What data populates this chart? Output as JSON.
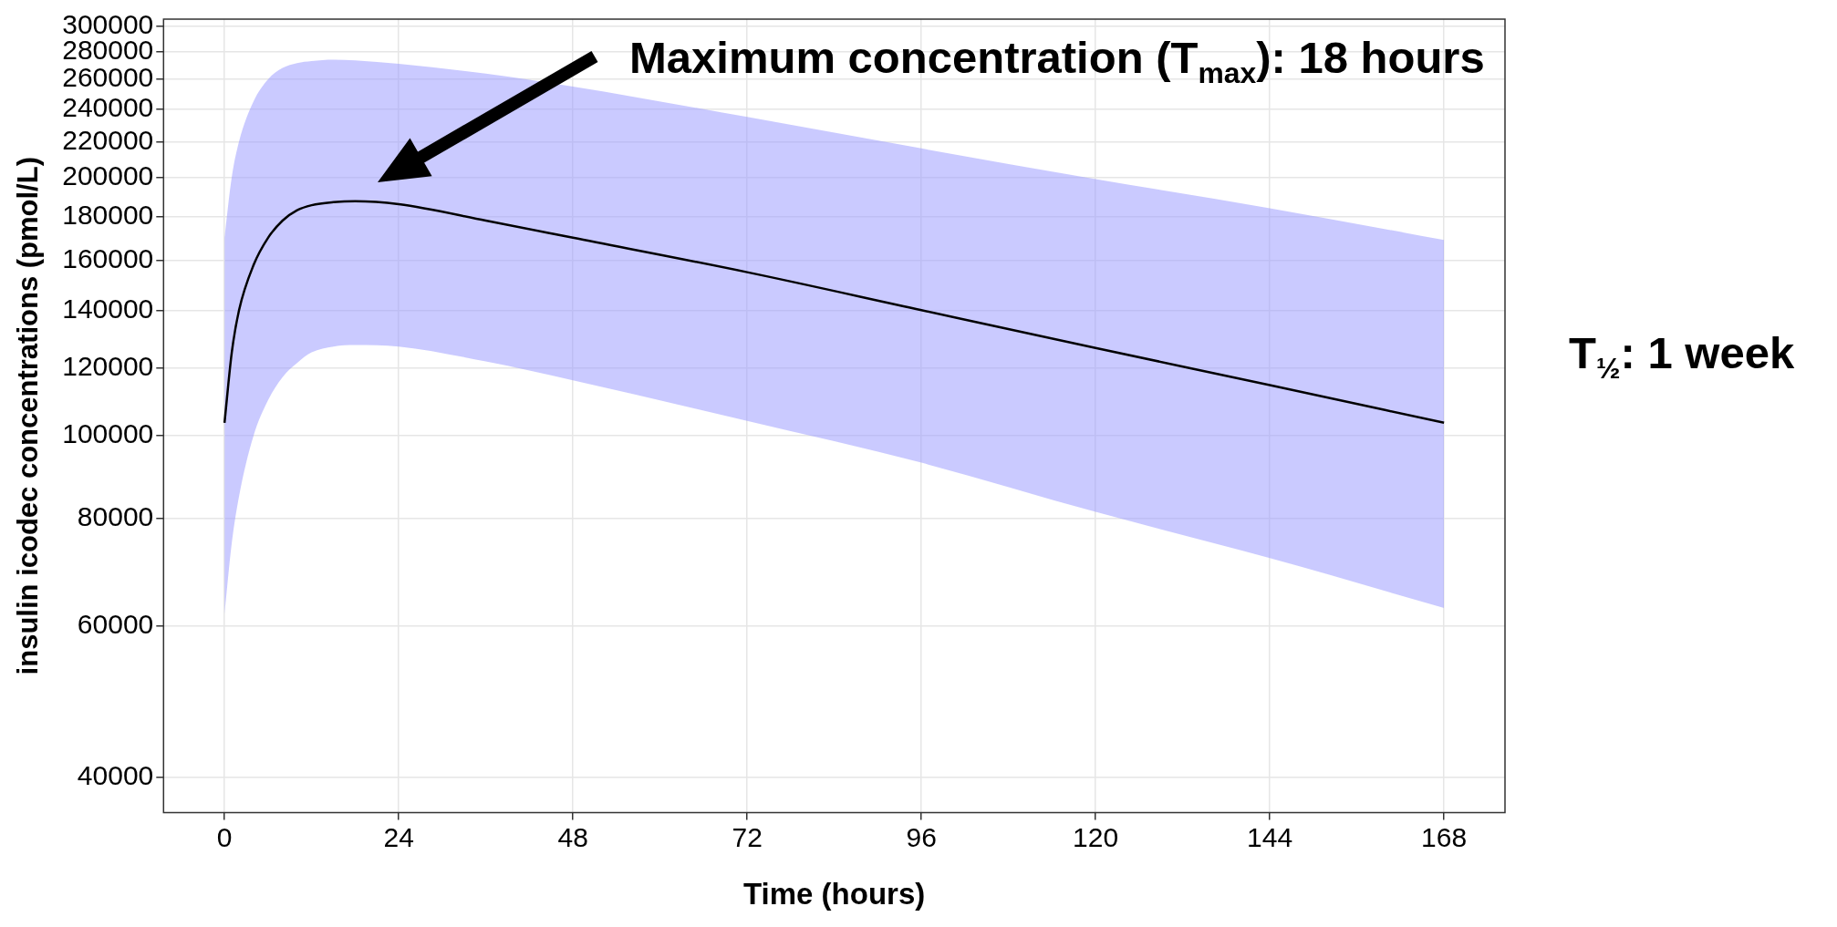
{
  "chart_data": {
    "type": "line",
    "xlabel": "Time (hours)",
    "ylabel": "insulin icodec concentrations (pmol/L)",
    "xlim": [
      -8.4,
      176.4
    ],
    "xticks": [
      0,
      24,
      48,
      72,
      96,
      120,
      144,
      168
    ],
    "ylim": [
      36400,
      305500
    ],
    "yticks": [
      40000,
      60000,
      80000,
      100000,
      120000,
      140000,
      160000,
      180000,
      200000,
      220000,
      240000,
      260000,
      280000,
      300000
    ],
    "log": "y",
    "grid": true,
    "legend": false,
    "marker": "none",
    "line_style": "solid",
    "x": [
      0,
      1,
      2,
      4,
      6,
      8,
      10,
      12,
      15,
      18,
      24,
      36,
      48,
      72,
      96,
      120,
      144,
      168
    ],
    "series": [
      {
        "color": "#000000",
        "values": [
          103500,
          125000,
          140000,
          158000,
          170000,
          178000,
          183000,
          185500,
          187000,
          187500,
          186000,
          178000,
          170000,
          155000,
          140000,
          126500,
          114500,
          103500
        ],
        "lower": [
          62000,
          75000,
          85000,
          100000,
          110000,
          117000,
          121500,
          125000,
          127000,
          127500,
          127000,
          122000,
          116000,
          104000,
          93000,
          81500,
          72000,
          63000
        ],
        "upper": [
          170000,
          200000,
          220000,
          245000,
          260000,
          268000,
          271500,
          273000,
          274000,
          273500,
          271000,
          264000,
          255000,
          235000,
          216000,
          199000,
          184000,
          169000
        ]
      }
    ],
    "annotations": [
      "Maximum concentration (T$_{max}$): 18 hours",
      "T$_{½}$: 1 week"
    ]
  }
}
